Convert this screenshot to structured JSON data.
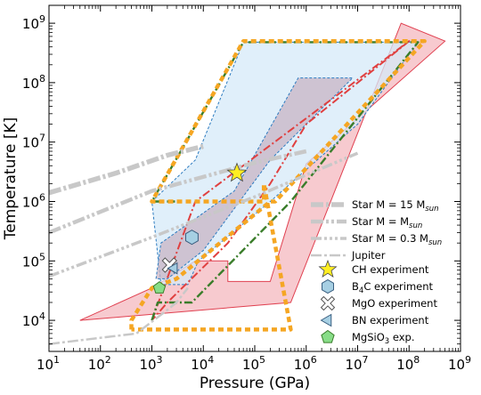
{
  "chart_data": {
    "type": "line",
    "xlabel": "Pressure (GPa)",
    "ylabel": "Temperature [K]",
    "xscale": "log",
    "yscale": "log",
    "xlim": [
      10,
      1000000000
    ],
    "ylim": [
      3000,
      2000000000
    ],
    "xticks": [
      {
        "v": 10,
        "b": "10",
        "e": "1"
      },
      {
        "v": 100,
        "b": "10",
        "e": "2"
      },
      {
        "v": 1000,
        "b": "10",
        "e": "3"
      },
      {
        "v": 10000,
        "b": "10",
        "e": "4"
      },
      {
        "v": 100000,
        "b": "10",
        "e": "5"
      },
      {
        "v": 1000000,
        "b": "10",
        "e": "6"
      },
      {
        "v": 10000000,
        "b": "10",
        "e": "7"
      },
      {
        "v": 100000000,
        "b": "10",
        "e": "8"
      },
      {
        "v": 1000000000,
        "b": "10",
        "e": "9"
      }
    ],
    "yticks": [
      {
        "v": 10000,
        "b": "10",
        "e": "4"
      },
      {
        "v": 100000,
        "b": "10",
        "e": "5"
      },
      {
        "v": 1000000,
        "b": "10",
        "e": "6"
      },
      {
        "v": 10000000,
        "b": "10",
        "e": "7"
      },
      {
        "v": 100000000,
        "b": "10",
        "e": "8"
      },
      {
        "v": 1000000000,
        "b": "10",
        "e": "9"
      }
    ],
    "grid": false,
    "legend_position": "lower-right",
    "regions": [
      {
        "fill": "#f4b8bf",
        "edge": "#e04050",
        "points": [
          [
            40,
            10000
          ],
          [
            1000,
            35000
          ],
          [
            7000,
            100000
          ],
          [
            30000,
            100000
          ],
          [
            30000,
            45000
          ],
          [
            200000,
            45000
          ],
          [
            1000000,
            4300000
          ],
          [
            500000000,
            500000000
          ],
          [
            70000000,
            1000000000
          ],
          [
            500000,
            20000
          ],
          [
            40,
            10000
          ]
        ]
      },
      {
        "fill": "#d5eaf8",
        "edge": "#2c7bc0",
        "points": [
          [
            1000,
            1000000
          ],
          [
            7000,
            5000000
          ],
          [
            60000,
            480000000
          ],
          [
            150000000,
            480000000
          ],
          [
            10000000,
            20000000
          ],
          [
            200000,
            1000000
          ],
          [
            8000,
            100000
          ],
          [
            5000,
            40000
          ],
          [
            1500,
            40000
          ],
          [
            1000,
            1000000
          ]
        ]
      },
      {
        "fill": "#c8b4c4",
        "edge": "#2c7bc0",
        "points": [
          [
            1200,
            50000
          ],
          [
            1500,
            200000
          ],
          [
            40000,
            1500000
          ],
          [
            700000,
            120000000
          ],
          [
            8000000,
            120000000
          ],
          [
            200000,
            5000000
          ],
          [
            10000,
            150000
          ],
          [
            2000,
            50000
          ],
          [
            1200,
            50000
          ]
        ]
      }
    ],
    "series": [
      {
        "name": "",
        "color": "#e04040",
        "width": 2,
        "dash": "9,3,2,3",
        "points": [
          [
            1000,
            10000
          ],
          [
            7000,
            1000000
          ],
          [
            100000000,
            500000000
          ],
          [
            1000000,
            20000000
          ],
          [
            200000,
            2000000
          ],
          [
            30000,
            200000
          ],
          [
            2000,
            20000
          ],
          [
            1000,
            10000
          ]
        ]
      },
      {
        "name": "",
        "color": "#3a7d2a",
        "width": 2.4,
        "dash": "9,3,2,3",
        "points": [
          [
            1000,
            10000
          ],
          [
            1300,
            20000
          ],
          [
            6000,
            20000
          ],
          [
            500000,
            1000000
          ],
          [
            150000000,
            480000000
          ],
          [
            60000,
            480000000
          ],
          [
            1000,
            1000000
          ],
          [
            3000,
            1000000
          ]
        ]
      },
      {
        "name": "",
        "color": "#f5a623",
        "width": 4.5,
        "dash": "6,4",
        "points": [
          [
            400,
            7000
          ],
          [
            400,
            10000
          ],
          [
            1000,
            35000
          ],
          [
            3000,
            50000
          ],
          [
            200000,
            1000000
          ],
          [
            250000,
            1000000
          ],
          [
            200000000,
            500000000
          ],
          [
            60000,
            500000000
          ],
          [
            1000,
            1000000
          ],
          [
            4000,
            1000000
          ],
          [
            100000,
            1000000
          ],
          [
            150000,
            1000000
          ],
          [
            150000,
            2000000
          ],
          [
            500000,
            7000
          ],
          [
            400,
            7000
          ]
        ]
      },
      {
        "name": "Star M = 15 M",
        "sub": "sun",
        "color": "#c8c8c8",
        "width": 5.5,
        "dash": "14,3,3,3",
        "points": [
          [
            10,
            1400000
          ],
          [
            200,
            3000000
          ],
          [
            2000,
            6000000
          ],
          [
            10000,
            8500000
          ]
        ]
      },
      {
        "name": "Star M = M",
        "sub": "sun",
        "color": "#c8c8c8",
        "width": 4.5,
        "dash": "14,3,3,3,3,3",
        "points": [
          [
            10,
            300000
          ],
          [
            1000,
            1500000
          ],
          [
            100000,
            4500000
          ],
          [
            1000000,
            7000000
          ]
        ]
      },
      {
        "name": "Star M = 0.3 M",
        "sub": "sun",
        "color": "#c8c8c8",
        "width": 3.5,
        "dash": "12,3,3,3,3,3,3,3",
        "points": [
          [
            10,
            55000
          ],
          [
            1000,
            250000
          ],
          [
            100000,
            1200000
          ],
          [
            10000000,
            6500000
          ]
        ]
      },
      {
        "name": "Jupiter",
        "color": "#c8c8c8",
        "width": 2.5,
        "dash": "12,3,3,3",
        "points": [
          [
            10,
            4000
          ],
          [
            500,
            6000
          ],
          [
            2000,
            15000
          ],
          [
            3000,
            20000
          ],
          [
            5000,
            35000
          ]
        ]
      }
    ],
    "experiments": [
      {
        "name": "CH experiment",
        "marker": "star",
        "x": 45000,
        "y": 3000000,
        "fill": "#ffee22",
        "stroke": "#444444",
        "size": 11
      },
      {
        "name": "B",
        "sub": "4",
        "name2": "C experiment",
        "marker": "hexagon",
        "x": 6000,
        "y": 250000,
        "fill": "#a6cfe3",
        "stroke": "#3a5f80",
        "size": 8
      },
      {
        "name": "MgO experiment",
        "marker": "x",
        "x": 2200,
        "y": 85000,
        "fill": "#ffffff",
        "stroke": "#555555",
        "size": 8
      },
      {
        "name": "BN experiment",
        "marker": "triangle-left",
        "x": 2700,
        "y": 75000,
        "fill": "#a6cfe3",
        "stroke": "#3a5f80",
        "size": 7
      },
      {
        "name": "MgSiO",
        "sub": "3",
        "name2": " exp.",
        "marker": "pentagon",
        "x": 1400,
        "y": 35000,
        "fill": "#88dd88",
        "stroke": "#3a7d2a",
        "size": 7
      }
    ]
  }
}
